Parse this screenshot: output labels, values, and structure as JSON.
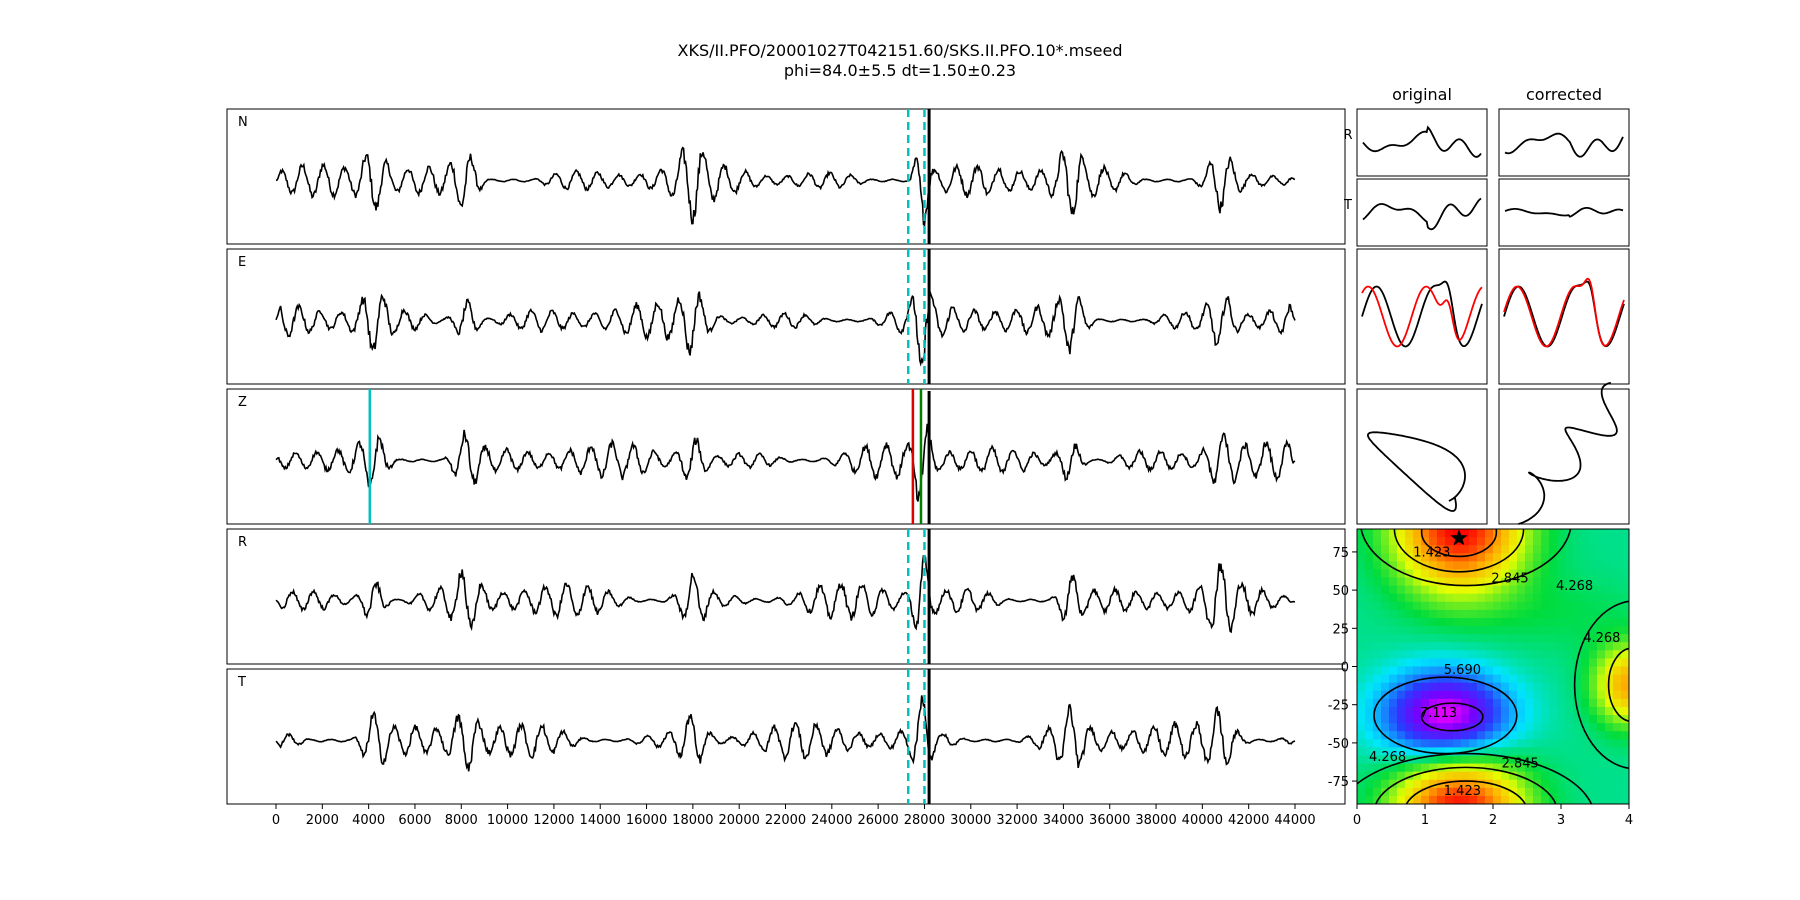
{
  "title_line1": "XKS/II.PFO/20001027T042151.60/SKS.II.PFO.10*.mseed",
  "title_line2": "phi=84.0±5.5 dt=1.50±0.23",
  "column_titles": {
    "original": "original",
    "corrected": "corrected"
  },
  "chart_data": [
    {
      "type": "line",
      "name": "waveforms",
      "channels": [
        "N",
        "E",
        "Z",
        "R",
        "T"
      ],
      "x_range": [
        0,
        44000
      ],
      "x_ticks": [
        0,
        2000,
        4000,
        6000,
        8000,
        10000,
        12000,
        14000,
        16000,
        18000,
        20000,
        22000,
        24000,
        26000,
        28000,
        30000,
        32000,
        34000,
        36000,
        38000,
        40000,
        42000,
        44000
      ],
      "window_markers": {
        "start": 27300,
        "end": 28000,
        "color": "#00c0c0"
      },
      "z_markers": [
        {
          "x": 4050,
          "color": "#00c0c0"
        },
        {
          "x": 27500,
          "color": "#e00000"
        },
        {
          "x": 27850,
          "color": "#008000"
        }
      ]
    },
    {
      "type": "line",
      "name": "particle-panels",
      "rows": [
        "R",
        "T"
      ],
      "columns": [
        "original",
        "corrected"
      ],
      "colors": {
        "first": "#000000",
        "second": "#ff0000"
      }
    },
    {
      "type": "heatmap",
      "name": "misfit-grid",
      "xlim": [
        0,
        4
      ],
      "ylim": [
        -90,
        90
      ],
      "x_ticks": [
        0,
        1,
        2,
        3,
        4
      ],
      "y_ticks": [
        75,
        50,
        25,
        0,
        -25,
        -50,
        -75
      ],
      "contour_labels": [
        {
          "text": "1.423",
          "x": 1.1,
          "y": 72
        },
        {
          "text": "2.845",
          "x": 2.25,
          "y": 55
        },
        {
          "text": "4.268",
          "x": 3.2,
          "y": 50
        },
        {
          "text": "4.268",
          "x": 3.6,
          "y": 16
        },
        {
          "text": "5.690",
          "x": 1.55,
          "y": -5
        },
        {
          "text": "7.113",
          "x": 1.2,
          "y": -33
        },
        {
          "text": "4.268",
          "x": 0.45,
          "y": -62
        },
        {
          "text": "2.845",
          "x": 2.4,
          "y": -66
        },
        {
          "text": "1.423",
          "x": 1.55,
          "y": -84
        }
      ],
      "best": {
        "x": 1.5,
        "y": 84
      }
    }
  ]
}
